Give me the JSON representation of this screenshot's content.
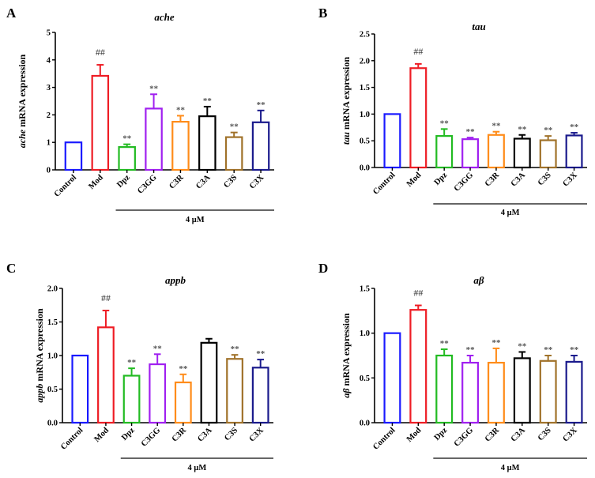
{
  "figure": {
    "group_label": "4 μM",
    "colors": {
      "Control": "#1a1aff",
      "Mod": "#ee1c24",
      "Dpz": "#22bb22",
      "C3GG": "#a020f0",
      "C3R": "#ff8c1a",
      "C3A": "#000000",
      "C3S": "#a0722a",
      "C3X": "#1a1a8c"
    }
  },
  "chart_data": [
    {
      "panel": "A",
      "type": "bar",
      "title": "ache",
      "ylabel_italic": "ache",
      "ylabel_rest": " mRNA expression",
      "xlabel": "",
      "categories": [
        "Control",
        "Mod",
        "Dpz",
        "C3GG",
        "C3R",
        "C3A",
        "C3S",
        "C3X"
      ],
      "values": [
        1.0,
        3.42,
        0.83,
        2.23,
        1.75,
        1.95,
        1.19,
        1.73
      ],
      "errors": [
        0.0,
        0.4,
        0.1,
        0.52,
        0.22,
        0.35,
        0.17,
        0.43
      ],
      "annotations": [
        "",
        "##",
        "**",
        "**",
        "**",
        "**",
        "**",
        "**"
      ],
      "ylim": [
        0,
        5
      ],
      "yticks": [
        "0",
        "1",
        "2",
        "3",
        "4",
        "5"
      ],
      "ytick_values": [
        0,
        1,
        2,
        3,
        4,
        5
      ],
      "grid": false,
      "bracket_group": "4 μM"
    },
    {
      "panel": "B",
      "type": "bar",
      "title": "tau",
      "ylabel_italic": "tau",
      "ylabel_rest": " mRNA expression",
      "xlabel": "",
      "categories": [
        "Control",
        "Mod",
        "Dpz",
        "C3GG",
        "C3R",
        "C3A",
        "C3S",
        "C3X"
      ],
      "values": [
        1.0,
        1.86,
        0.59,
        0.53,
        0.61,
        0.54,
        0.51,
        0.6
      ],
      "errors": [
        0.0,
        0.08,
        0.13,
        0.03,
        0.06,
        0.07,
        0.08,
        0.05
      ],
      "annotations": [
        "",
        "##",
        "**",
        "**",
        "**",
        "**",
        "**",
        "**"
      ],
      "ylim": [
        0,
        2.5
      ],
      "yticks": [
        "0.0",
        "0.5",
        "1.0",
        "1.5",
        "2.0",
        "2.5"
      ],
      "ytick_values": [
        0,
        0.5,
        1.0,
        1.5,
        2.0,
        2.5
      ],
      "grid": false,
      "bracket_group": "4 μM"
    },
    {
      "panel": "C",
      "type": "bar",
      "title": "appb",
      "ylabel_italic": "appb",
      "ylabel_rest": " mRNA expression",
      "xlabel": "",
      "categories": [
        "Control",
        "Mod",
        "Dpz",
        "C3GG",
        "C3R",
        "C3A",
        "C3S",
        "C3X"
      ],
      "values": [
        1.0,
        1.42,
        0.7,
        0.87,
        0.6,
        1.19,
        0.95,
        0.82
      ],
      "errors": [
        0.0,
        0.25,
        0.11,
        0.15,
        0.12,
        0.06,
        0.06,
        0.12
      ],
      "annotations": [
        "",
        "##",
        "**",
        "**",
        "**",
        "",
        "**",
        "**"
      ],
      "ylim": [
        0,
        2.0
      ],
      "yticks": [
        "0.0",
        "0.5",
        "1.0",
        "1.5",
        "2.0"
      ],
      "ytick_values": [
        0,
        0.5,
        1.0,
        1.5,
        2.0
      ],
      "grid": false,
      "bracket_group": "4 μM"
    },
    {
      "panel": "D",
      "type": "bar",
      "title": "aβ",
      "ylabel_italic": "aβ",
      "ylabel_rest": " mRNA expression",
      "xlabel": "",
      "categories": [
        "Control",
        "Mod",
        "Dpz",
        "C3GG",
        "C3R",
        "C3A",
        "C3S",
        "C3X"
      ],
      "values": [
        1.0,
        1.26,
        0.75,
        0.67,
        0.67,
        0.72,
        0.69,
        0.68
      ],
      "errors": [
        0.0,
        0.05,
        0.07,
        0.08,
        0.16,
        0.07,
        0.06,
        0.07
      ],
      "annotations": [
        "",
        "##",
        "**",
        "**",
        "**",
        "**",
        "**",
        "**"
      ],
      "ylim": [
        0,
        1.5
      ],
      "yticks": [
        "0.0",
        "0.5",
        "1.0",
        "1.5"
      ],
      "ytick_values": [
        0,
        0.5,
        1.0,
        1.5
      ],
      "grid": false,
      "bracket_group": "4 μM"
    }
  ]
}
